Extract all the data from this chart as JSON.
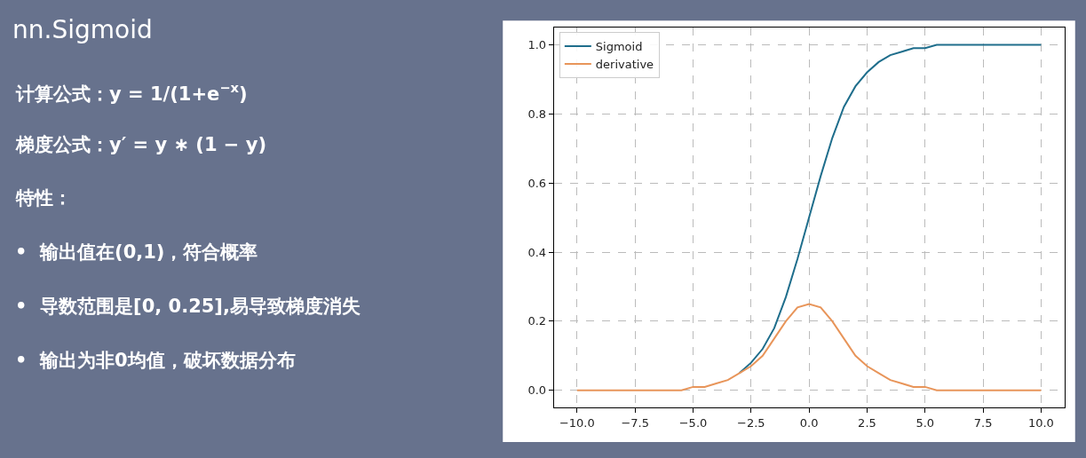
{
  "chart_data": [
    {
      "type": "other",
      "title": "nn.Sigmoid",
      "annotations": [
        "计算公式：y = 1/(1+e$^{−x}$)",
        "梯度公式：y′ = y ∗ (1 − y)",
        "特性：",
        "•  输出值在(0,1)，符合概率",
        "•  导数范围是[0, 0.25],易导致梯度消失",
        "•  输出为非0均值，破坏数据分布"
      ]
    },
    {
      "type": "line",
      "x": [
        -10,
        -9.5,
        -9,
        -8.5,
        -8,
        -7.5,
        -7,
        -6.5,
        -6,
        -5.5,
        -5,
        -4.5,
        -4,
        -3.5,
        -3,
        -2.5,
        -2,
        -1.5,
        -1,
        -0.5,
        0,
        0.5,
        1,
        1.5,
        2,
        2.5,
        3,
        3.5,
        4,
        4.5,
        5,
        5.5,
        6,
        6.5,
        7,
        7.5,
        8,
        8.5,
        9,
        9.5,
        10
      ],
      "series": [
        {
          "name": "Sigmoid",
          "color": "#1f6e8c",
          "values": [
            null,
            null,
            null,
            null,
            null,
            null,
            null,
            null,
            null,
            null,
            null,
            null,
            null,
            null,
            0.05,
            0.08,
            0.12,
            0.18,
            0.27,
            0.38,
            0.5,
            0.62,
            0.73,
            0.82,
            0.88,
            0.92,
            0.95,
            0.97,
            0.98,
            0.99,
            0.99,
            1,
            1,
            1,
            1,
            1,
            1,
            1,
            1,
            1,
            1
          ]
        },
        {
          "name": "derivative",
          "color": "#e8955a",
          "values": [
            0,
            0,
            0,
            0,
            0,
            0,
            0,
            0,
            0,
            0,
            0.01,
            0.01,
            0.02,
            0.03,
            0.05,
            0.07,
            0.1,
            0.15,
            0.2,
            0.24,
            0.25,
            0.24,
            0.2,
            0.15,
            0.1,
            0.07,
            0.05,
            0.03,
            0.02,
            0.01,
            0.01,
            0,
            0,
            0,
            0,
            0,
            0,
            0,
            0,
            0,
            0
          ]
        }
      ],
      "xlim": [
        -11,
        11
      ],
      "xticks": [
        {
          "value": -10,
          "label": "−10.0"
        },
        {
          "value": -7.5,
          "label": "−7.5"
        },
        {
          "value": -5,
          "label": "−5.0"
        },
        {
          "value": -2.5,
          "label": "−2.5"
        },
        {
          "value": 0,
          "label": "0.0"
        },
        {
          "value": 2.5,
          "label": "2.5"
        },
        {
          "value": 5,
          "label": "5.0"
        },
        {
          "value": 7.5,
          "label": "7.5"
        },
        {
          "value": 10,
          "label": "10.0"
        }
      ],
      "ylim": [
        -0.05,
        1.05
      ],
      "yticks": [
        {
          "value": 0,
          "label": "0.0"
        },
        {
          "value": 0.2,
          "label": "0.2"
        },
        {
          "value": 0.4,
          "label": "0.4"
        },
        {
          "value": 0.6,
          "label": "0.6"
        },
        {
          "value": 0.8,
          "label": "0.8"
        },
        {
          "value": 1,
          "label": "1.0"
        }
      ],
      "grid": true,
      "legend": "top left",
      "line_style": "solid",
      "marker": "none"
    }
  ]
}
